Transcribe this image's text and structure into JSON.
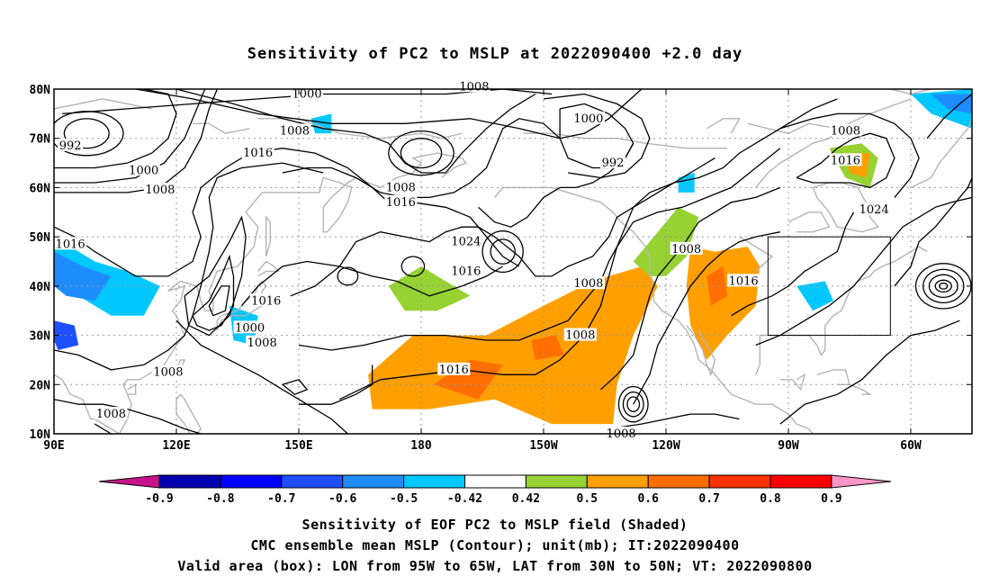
{
  "title": "Sensitivity of PC2 to MSLP at 2022090400 +2.0 day",
  "map": {
    "lat_labels": [
      "80N",
      "70N",
      "60N",
      "50N",
      "40N",
      "30N",
      "20N",
      "10N"
    ],
    "lon_labels": [
      "90E",
      "120E",
      "150E",
      "180",
      "150W",
      "120W",
      "90W",
      "60W"
    ],
    "contour_labels": [
      {
        "text": "1000",
        "lon": 112,
        "lat": 63.5
      },
      {
        "text": "1008",
        "lon": 116,
        "lat": 59.5
      },
      {
        "text": "992",
        "lon": 94,
        "lat": 68.5
      },
      {
        "text": "1016",
        "lon": 94,
        "lat": 48.5
      },
      {
        "text": "1000",
        "lon": 138,
        "lat": 31.5
      },
      {
        "text": "1008",
        "lon": 141,
        "lat": 28.5
      },
      {
        "text": "1016",
        "lon": 142,
        "lat": 37
      },
      {
        "text": "1008",
        "lon": 118,
        "lat": 22.5
      },
      {
        "text": "1008",
        "lon": 104,
        "lat": 14
      },
      {
        "text": "1000",
        "lon": 152,
        "lat": 79
      },
      {
        "text": "1008",
        "lon": 149,
        "lat": 71.5
      },
      {
        "text": "1016",
        "lon": 140,
        "lat": 67
      },
      {
        "text": "1008",
        "lon": 193,
        "lat": 80.5
      },
      {
        "text": "1008",
        "lon": 175,
        "lat": 60
      },
      {
        "text": "1016",
        "lon": 175,
        "lat": 57
      },
      {
        "text": "1024",
        "lon": 191,
        "lat": 49
      },
      {
        "text": "1016",
        "lon": 191,
        "lat": 43
      },
      {
        "text": "1000",
        "lon": 221,
        "lat": 74
      },
      {
        "text": "992",
        "lon": 227,
        "lat": 65
      },
      {
        "text": "1008",
        "lon": 221,
        "lat": 40.5
      },
      {
        "text": "1008",
        "lon": 219,
        "lat": 30
      },
      {
        "text": "1016",
        "lon": 188,
        "lat": 23
      },
      {
        "text": "1008",
        "lon": 245,
        "lat": 47.5
      },
      {
        "text": "1016",
        "lon": 259,
        "lat": 41
      },
      {
        "text": "1008",
        "lon": 284,
        "lat": 71.5
      },
      {
        "text": "1016",
        "lon": 284,
        "lat": 65.5
      },
      {
        "text": "1024",
        "lon": 291,
        "lat": 55.5
      },
      {
        "text": "1008",
        "lon": 229,
        "lat": 10
      }
    ],
    "valid_box": {
      "lon_min": -95,
      "lon_max": -65,
      "lat_min": 30,
      "lat_max": 50
    },
    "colors": {
      "coast": "#b4b4b4",
      "contour": "#000000",
      "grid": "#999999"
    }
  },
  "colorbar": {
    "labels": [
      "-0.9",
      "-0.8",
      "-0.7",
      "-0.6",
      "-0.5",
      "-0.42",
      "0.42",
      "0.5",
      "0.6",
      "0.7",
      "0.8",
      "0.9"
    ],
    "colors": [
      "#0000b0",
      "#0000ff",
      "#1e50ff",
      "#1e8cff",
      "#00c8ff",
      "#ffffff",
      "#96d232",
      "#ffa000",
      "#ff6e00",
      "#ff3200",
      "#ff0000"
    ],
    "under_color": "#c8148c",
    "over_color": "#ff96c8"
  },
  "footer": {
    "line1": "Sensitivity of EOF PC2 to MSLP field (Shaded)",
    "line2": "CMC ensemble mean MSLP (Contour); unit(mb); IT:2022090400",
    "line3": "Valid area (box): LON from 95W to 65W, LAT from 30N to 50N; VT: 2022090800"
  }
}
